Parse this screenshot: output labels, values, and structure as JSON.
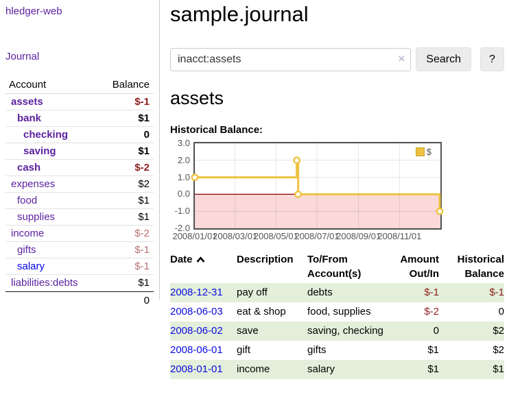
{
  "colors": {
    "link_purple": "#5b1f9e",
    "link_blue": "#0000ee",
    "negative_strong": "#8f1d1d",
    "negative_soft": "#b97070",
    "row_stripe_green": "#e3efda",
    "chart_line_gold": "#edc240",
    "chart_negative_fill": "#fbd9d9",
    "chart_zero_line": "#8b0000",
    "chart_border": "#545454"
  },
  "sidebar": {
    "app_title": "hledger-web",
    "journal_link": "Journal",
    "accounts": {
      "header_account": "Account",
      "header_balance": "Balance",
      "rows": [
        {
          "name": "assets",
          "balance": "$-1"
        },
        {
          "name": "bank",
          "balance": "$1"
        },
        {
          "name": "checking",
          "balance": "0"
        },
        {
          "name": "saving",
          "balance": "$1"
        },
        {
          "name": "cash",
          "balance": "$-2"
        },
        {
          "name": "expenses",
          "balance": "$2"
        },
        {
          "name": "food",
          "balance": "$1"
        },
        {
          "name": "supplies",
          "balance": "$1"
        },
        {
          "name": "income",
          "balance": "$-2"
        },
        {
          "name": "gifts",
          "balance": "$-1"
        },
        {
          "name": "salary",
          "balance": "$-1"
        },
        {
          "name": "liabilities:debts",
          "balance": "$1"
        }
      ],
      "total": "0"
    }
  },
  "main": {
    "title": "sample.journal",
    "search": {
      "value": "inacct:assets",
      "clear_icon": "×",
      "search_button": "Search",
      "help_button": "?"
    },
    "account_heading": "assets",
    "chart_label": "Historical Balance:",
    "register": {
      "headers": {
        "date": "Date",
        "description": "Description",
        "accounts": "To/From Account(s)",
        "amount": "Amount Out/In",
        "balance": "Historical Balance"
      },
      "rows": [
        {
          "date": "2008-12-31",
          "description": "pay off",
          "accounts": "debts",
          "amount": "$-1",
          "balance": "$-1"
        },
        {
          "date": "2008-06-03",
          "description": "eat & shop",
          "accounts": "food, supplies",
          "amount": "$-2",
          "balance": "0"
        },
        {
          "date": "2008-06-02",
          "description": "save",
          "accounts": "saving, checking",
          "amount": "0",
          "balance": "$2"
        },
        {
          "date": "2008-06-01",
          "description": "gift",
          "accounts": "gifts",
          "amount": "$1",
          "balance": "$2"
        },
        {
          "date": "2008-01-01",
          "description": "income",
          "accounts": "salary",
          "amount": "$1",
          "balance": "$1"
        }
      ]
    }
  },
  "chart_data": {
    "type": "line",
    "step": true,
    "title": "Historical Balance:",
    "legend_label": "$",
    "legend_position": "top-right",
    "grid": true,
    "series": [
      {
        "name": "$",
        "points": [
          [
            "2008/01/01",
            1
          ],
          [
            "2008/06/01",
            2
          ],
          [
            "2008/06/03",
            0
          ],
          [
            "2008/12/31",
            -1
          ]
        ]
      }
    ],
    "x_ticks": [
      "2008/01/01",
      "2008/03/01",
      "2008/05/01",
      "2008/07/01",
      "2008/09/01",
      "2008/11/01"
    ],
    "y_ticks": [
      3.0,
      2.0,
      1.0,
      0.0,
      -1.0,
      -2.0
    ],
    "xlim": [
      "2008/01/01",
      "2009/01/01"
    ],
    "ylim": [
      -2,
      3
    ]
  }
}
